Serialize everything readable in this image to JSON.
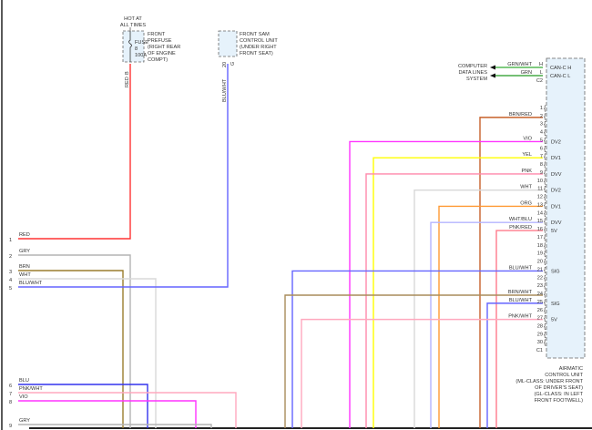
{
  "fuse": {
    "hot_lines": [
      "HOT AT",
      "ALL TIMES"
    ],
    "inner": [
      "FUSE",
      "8",
      "100A"
    ],
    "label": [
      "FRONT",
      "PREFUSE",
      "(RIGHT REAR",
      "OF ENGINE",
      "COMPT)"
    ],
    "pin": "B",
    "wire": "RED"
  },
  "sam": {
    "label": [
      "FRONT SAM",
      "CONTROL UNIT",
      "(UNDER RIGHT",
      "FRONT SEAT)"
    ],
    "pin_num": "20",
    "pin_conn": "G",
    "wire": "BLU/WHT"
  },
  "data_lines": {
    "label": [
      "COMPUTER",
      "DATA LINES",
      "SYSTEM"
    ],
    "wires": [
      {
        "color": "GRN/WHT",
        "pin": "H",
        "func": "CAN-C H"
      },
      {
        "color": "GRN",
        "pin": "L",
        "func": "CAN-C L"
      }
    ],
    "connector": "C2"
  },
  "module": {
    "label": [
      "AIRMATIC",
      "CONTROL UNIT",
      "(ML-CLASS: UNDER FRONT",
      "OF DRIVER'S SEAT)",
      "(GL-CLASS: IN LEFT",
      "FRONT FOOTWELL)"
    ],
    "connector": "C1"
  },
  "module_pins": [
    {
      "n": "1",
      "wire": "",
      "func": ""
    },
    {
      "n": "2",
      "wire": "BRN/RED",
      "func": ""
    },
    {
      "n": "3",
      "wire": "",
      "func": ""
    },
    {
      "n": "4",
      "wire": "",
      "func": ""
    },
    {
      "n": "5",
      "wire": "VIO",
      "func": "DV2"
    },
    {
      "n": "6",
      "wire": "",
      "func": ""
    },
    {
      "n": "7",
      "wire": "YEL",
      "func": "DV1"
    },
    {
      "n": "8",
      "wire": "",
      "func": ""
    },
    {
      "n": "9",
      "wire": "PNK",
      "func": "DVV"
    },
    {
      "n": "10",
      "wire": "",
      "func": ""
    },
    {
      "n": "11",
      "wire": "WHT",
      "func": "DV2"
    },
    {
      "n": "12",
      "wire": "",
      "func": ""
    },
    {
      "n": "13",
      "wire": "ORG",
      "func": "DV1"
    },
    {
      "n": "14",
      "wire": "",
      "func": ""
    },
    {
      "n": "15",
      "wire": "WHT/BLU",
      "func": "DVV"
    },
    {
      "n": "16",
      "wire": "PNK/RED",
      "func": "5V"
    },
    {
      "n": "17",
      "wire": "",
      "func": ""
    },
    {
      "n": "18",
      "wire": "",
      "func": ""
    },
    {
      "n": "19",
      "wire": "",
      "func": ""
    },
    {
      "n": "20",
      "wire": "",
      "func": ""
    },
    {
      "n": "21",
      "wire": "BLU/WHT",
      "func": "SIG"
    },
    {
      "n": "22",
      "wire": "",
      "func": ""
    },
    {
      "n": "23",
      "wire": "",
      "func": ""
    },
    {
      "n": "24",
      "wire": "BRN/WHT",
      "func": ""
    },
    {
      "n": "25",
      "wire": "BLU/WHT",
      "func": "SIG"
    },
    {
      "n": "26",
      "wire": "",
      "func": ""
    },
    {
      "n": "27",
      "wire": "PNK/WHT",
      "func": "5V"
    },
    {
      "n": "28",
      "wire": "",
      "func": ""
    },
    {
      "n": "29",
      "wire": "",
      "func": ""
    },
    {
      "n": "30",
      "wire": "",
      "func": ""
    }
  ],
  "left_pins": [
    {
      "n": "1",
      "wire": "RED"
    },
    {
      "n": "2",
      "wire": "GRY"
    },
    {
      "n": "3",
      "wire": "BRN"
    },
    {
      "n": "4",
      "wire": "WHT"
    },
    {
      "n": "5",
      "wire": "BLU/WHT"
    },
    {
      "n": "6",
      "wire": "BLU"
    },
    {
      "n": "7",
      "wire": "PNK/WHT"
    },
    {
      "n": "8",
      "wire": "VIO"
    },
    {
      "n": "9",
      "wire": "GRY"
    }
  ],
  "colors": {
    "RED": "#ff3333",
    "GRY": "#b4b4b4",
    "BRN": "#9a7d2e",
    "WHT": "#d8d8d8",
    "BLU/WHT": "#6464ff",
    "BLU": "#3333ee",
    "PNK/WHT": "#ffa8be",
    "VIO": "#ff33ff",
    "BRN/RED": "#c8602a",
    "YEL": "#ffff00",
    "PNK": "#ff88aa",
    "ORG": "#ff9933",
    "WHT/BLU": "#b4b4ff",
    "PNK/RED": "#ff7a8c",
    "BRN/WHT": "#a88c5a",
    "GRN/WHT": "#33aa33",
    "GRN": "#229922",
    "module_fill": "#e6f2fb"
  }
}
